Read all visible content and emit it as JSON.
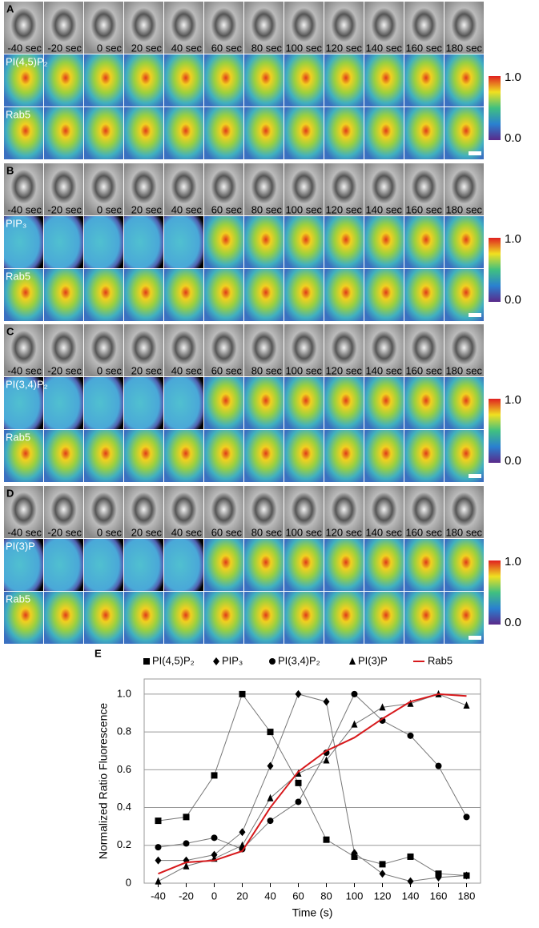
{
  "panels": [
    {
      "letter": "A",
      "rows": [
        "PI(4,5)P₂",
        "Rab5"
      ]
    },
    {
      "letter": "B",
      "rows": [
        "PIP₃",
        "Rab5"
      ]
    },
    {
      "letter": "C",
      "rows": [
        "PI(3,4)P₂",
        "Rab5"
      ]
    },
    {
      "letter": "D",
      "rows": [
        "PI(3)P",
        "Rab5"
      ]
    }
  ],
  "times": [
    "-40 sec",
    "-20 sec",
    "0 sec",
    "20 sec",
    "40 sec",
    "60 sec",
    "80 sec",
    "100 sec",
    "120 sec",
    "140 sec",
    "160 sec",
    "180 sec"
  ],
  "colorbar": {
    "max": "1.0",
    "min": "0.0"
  },
  "chart_data": {
    "type": "line",
    "letter": "E",
    "xlabel": "Time (s)",
    "ylabel": "Normalized Ratio Fluorescence",
    "x": [
      -40,
      -20,
      0,
      20,
      40,
      60,
      80,
      100,
      120,
      140,
      160,
      180
    ],
    "xlim": [
      -50,
      190
    ],
    "xticks": [
      -40,
      -20,
      0,
      20,
      40,
      60,
      80,
      100,
      120,
      140,
      160,
      180
    ],
    "ylim": [
      0,
      1.08
    ],
    "yticks": [
      0,
      0.2,
      0.4,
      0.6,
      0.8,
      {
        "value": 1,
        "label": "1.0"
      }
    ],
    "grid": true,
    "series": [
      {
        "name": "PI(4,5)P₂",
        "color": "#000000",
        "marker": "square",
        "values": [
          0.33,
          0.35,
          0.57,
          1.0,
          0.8,
          0.53,
          0.23,
          0.14,
          0.1,
          0.14,
          0.05,
          0.04
        ]
      },
      {
        "name": "PIP₃",
        "color": "#000000",
        "marker": "diamond",
        "values": [
          0.12,
          0.12,
          0.15,
          0.27,
          0.62,
          1.0,
          0.96,
          0.16,
          0.05,
          0.01,
          0.03,
          0.04
        ]
      },
      {
        "name": "PI(3,4)P₂",
        "color": "#000000",
        "marker": "circle",
        "values": [
          0.19,
          0.21,
          0.24,
          0.18,
          0.33,
          0.43,
          0.69,
          1.0,
          0.86,
          0.78,
          0.62,
          0.35
        ]
      },
      {
        "name": "PI(3)P",
        "color": "#000000",
        "marker": "triangle",
        "values": [
          0.01,
          0.09,
          0.13,
          0.2,
          0.45,
          0.58,
          0.65,
          0.84,
          0.93,
          0.95,
          1.0,
          0.94
        ]
      },
      {
        "name": "Rab5",
        "color": "#d7191c",
        "marker": "none",
        "values": [
          0.05,
          0.11,
          0.12,
          0.17,
          0.4,
          0.59,
          0.7,
          0.77,
          0.87,
          0.96,
          1.0,
          0.99
        ]
      }
    ]
  }
}
